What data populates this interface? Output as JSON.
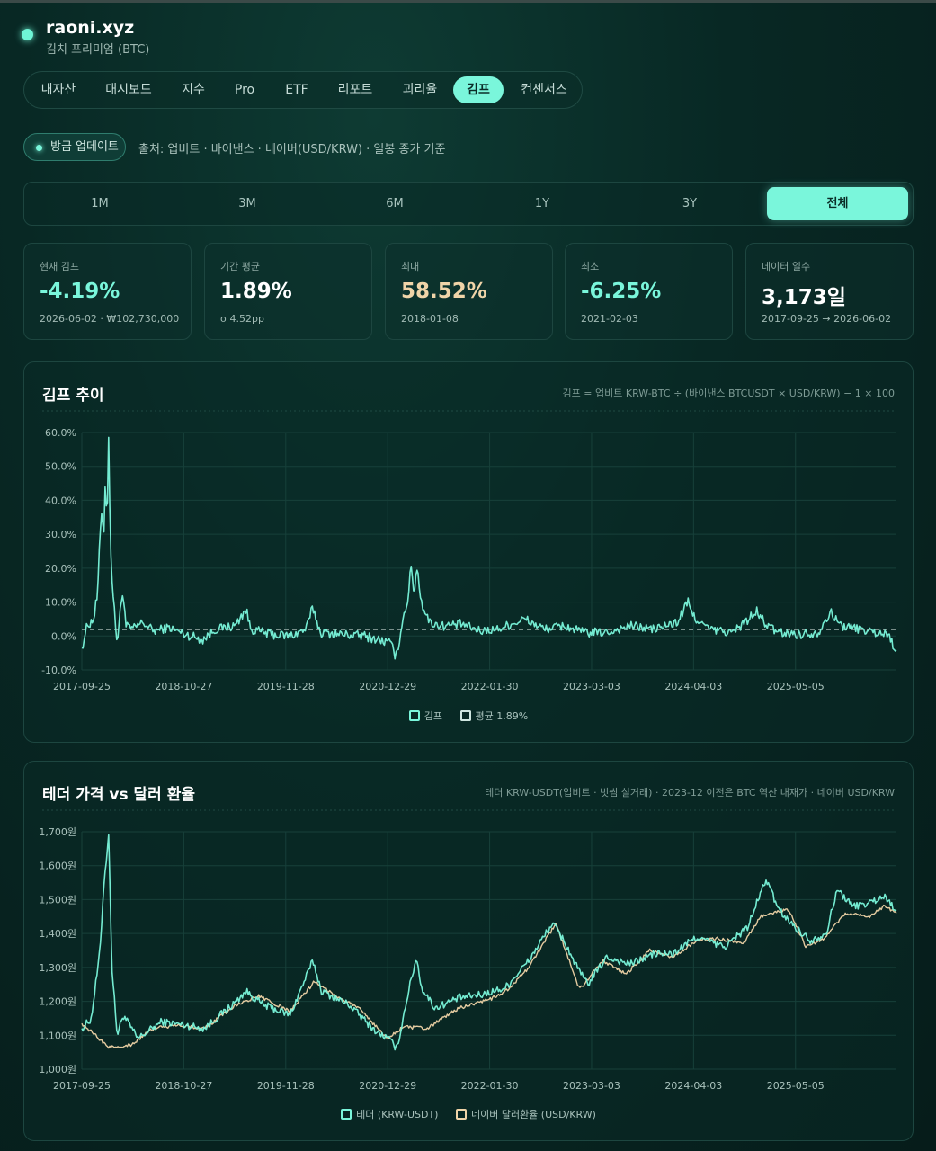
{
  "brand": {
    "name": "raoni.xyz",
    "subtitle": "김치 프리미엄 (BTC)"
  },
  "nav": {
    "items": [
      "내자산",
      "대시보드",
      "지수",
      "Pro",
      "ETF",
      "리포트",
      "괴리율",
      "김프",
      "컨센서스"
    ],
    "active": "김프"
  },
  "status": {
    "badge": "방금 업데이트",
    "source": "출처: 업비트 · 바이낸스 · 네이버(USD/KRW) · 일봉 종가 기준"
  },
  "range": {
    "items": [
      "1M",
      "3M",
      "6M",
      "1Y",
      "3Y",
      "전체"
    ],
    "active": "전체"
  },
  "stats": [
    {
      "label": "현재 김프",
      "value": "-4.19%",
      "sub": "2026-06-02 · ₩102,730,000",
      "color": "#7af6db"
    },
    {
      "label": "기간 평균",
      "value": "1.89%",
      "sub": "σ 4.52pp",
      "color": "#ffffff"
    },
    {
      "label": "최대",
      "value": "58.52%",
      "sub": "2018-01-08",
      "color": "#f0d4a8"
    },
    {
      "label": "최소",
      "value": "-6.25%",
      "sub": "2021-02-03",
      "color": "#7af6db"
    },
    {
      "label": "데이터 일수",
      "value": "3,173일",
      "sub": "2017-09-25 → 2026-06-02",
      "color": "#ffffff"
    }
  ],
  "colors": {
    "accent": "#7af6db",
    "secondary": "#f0d4a8",
    "mean_line": "#9fb1ad"
  },
  "chart1": {
    "title": "김프 추이",
    "note": "김프 = 업비트 KRW-BTC ÷ (바이낸스 BTCUSDT × USD/KRW) − 1 × 100"
  },
  "chart2": {
    "title": "테더 가격 vs 달러 환율",
    "note": "테더 KRW-USDT(업비트 · 빗썸 실거래) · 2023-12 이전은 BTC 역산 내재가 · 네이버 USD/KRW"
  },
  "chart_data": [
    {
      "type": "line",
      "title": "김프 추이",
      "x_ticks": [
        "2017-09-25",
        "2018-10-27",
        "2019-11-28",
        "2020-12-29",
        "2022-01-30",
        "2023-03-03",
        "2024-04-03",
        "2025-05-05"
      ],
      "y_ticks": [
        "60.0%",
        "50.0%",
        "40.0%",
        "30.0%",
        "20.0%",
        "10.0%",
        "0.0%",
        "-10.0%"
      ],
      "ylim": [
        -10,
        60
      ],
      "xlim": [
        "2017-09-25",
        "2026-06-02"
      ],
      "grid": true,
      "legend": "bottom",
      "legend_entries": [
        "김프",
        "평균 1.89%"
      ],
      "mean": 1.89,
      "series": [
        {
          "name": "김프",
          "color": "#7af6db",
          "points": [
            [
              "2017-09-25",
              -3.5
            ],
            [
              "2017-10-15",
              3.0
            ],
            [
              "2017-11-10",
              5.0
            ],
            [
              "2017-11-25",
              12.0
            ],
            [
              "2017-12-05",
              28.0
            ],
            [
              "2017-12-12",
              40.0
            ],
            [
              "2017-12-18",
              28.0
            ],
            [
              "2017-12-25",
              45.0
            ],
            [
              "2018-01-02",
              37.0
            ],
            [
              "2018-01-08",
              58.5
            ],
            [
              "2018-01-14",
              30.0
            ],
            [
              "2018-01-22",
              15.0
            ],
            [
              "2018-02-01",
              5.0
            ],
            [
              "2018-02-10",
              -2.0
            ],
            [
              "2018-02-20",
              6.0
            ],
            [
              "2018-03-05",
              14.0
            ],
            [
              "2018-03-15",
              3.0
            ],
            [
              "2018-04-10",
              2.0
            ],
            [
              "2018-05-20",
              4.0
            ],
            [
              "2018-07-01",
              1.5
            ],
            [
              "2018-09-01",
              2.5
            ],
            [
              "2018-11-01",
              0.5
            ],
            [
              "2019-01-10",
              -1.0
            ],
            [
              "2019-03-01",
              2.0
            ],
            [
              "2019-05-15",
              3.0
            ],
            [
              "2019-06-25",
              8.0
            ],
            [
              "2019-07-15",
              2.0
            ],
            [
              "2019-10-01",
              0.5
            ],
            [
              "2019-12-15",
              0.0
            ],
            [
              "2020-02-15",
              2.0
            ],
            [
              "2020-03-13",
              8.5
            ],
            [
              "2020-04-10",
              1.0
            ],
            [
              "2020-07-01",
              0.5
            ],
            [
              "2020-10-01",
              0.0
            ],
            [
              "2021-01-05",
              -2.0
            ],
            [
              "2021-02-03",
              -6.25
            ],
            [
              "2021-02-20",
              3.0
            ],
            [
              "2021-03-15",
              10.0
            ],
            [
              "2021-04-01",
              20.5
            ],
            [
              "2021-04-12",
              12.0
            ],
            [
              "2021-04-20",
              21.5
            ],
            [
              "2021-05-10",
              10.0
            ],
            [
              "2021-06-10",
              4.0
            ],
            [
              "2021-08-01",
              3.0
            ],
            [
              "2021-10-15",
              3.5
            ],
            [
              "2021-12-20",
              1.5
            ],
            [
              "2022-03-01",
              2.0
            ],
            [
              "2022-06-15",
              5.0
            ],
            [
              "2022-09-01",
              2.0
            ],
            [
              "2022-11-15",
              3.0
            ],
            [
              "2023-02-01",
              1.0
            ],
            [
              "2023-05-01",
              1.0
            ],
            [
              "2023-08-01",
              3.0
            ],
            [
              "2023-11-01",
              2.0
            ],
            [
              "2024-02-01",
              4.0
            ],
            [
              "2024-03-10",
              10.0
            ],
            [
              "2024-04-01",
              6.0
            ],
            [
              "2024-06-01",
              2.0
            ],
            [
              "2024-09-01",
              1.0
            ],
            [
              "2024-12-05",
              7.0
            ],
            [
              "2025-01-15",
              3.0
            ],
            [
              "2025-03-01",
              1.0
            ],
            [
              "2025-05-20",
              0.5
            ],
            [
              "2025-08-01",
              1.0
            ],
            [
              "2025-09-15",
              7.0
            ],
            [
              "2025-11-01",
              3.0
            ],
            [
              "2026-01-15",
              2.0
            ],
            [
              "2026-03-15",
              1.0
            ],
            [
              "2026-05-01",
              0.5
            ],
            [
              "2026-06-02",
              -4.19
            ]
          ]
        }
      ]
    },
    {
      "type": "line",
      "title": "테더 가격 vs 달러 환율",
      "x_ticks": [
        "2017-09-25",
        "2018-10-27",
        "2019-11-28",
        "2020-12-29",
        "2022-01-30",
        "2023-03-03",
        "2024-04-03",
        "2025-05-05"
      ],
      "y_ticks": [
        "1,700원",
        "1,600원",
        "1,500원",
        "1,400원",
        "1,300원",
        "1,200원",
        "1,100원",
        "1,000원"
      ],
      "ylim": [
        1000,
        1700
      ],
      "xlim": [
        "2017-09-25",
        "2026-06-02"
      ],
      "grid": true,
      "legend": "bottom",
      "legend_entries": [
        "테더 (KRW-USDT)",
        "네이버 달러환율 (USD/KRW)"
      ],
      "series": [
        {
          "name": "테더 (KRW-USDT)",
          "color": "#7af6db",
          "points": [
            [
              "2017-09-25",
              1120
            ],
            [
              "2017-11-01",
              1150
            ],
            [
              "2017-12-05",
              1350
            ],
            [
              "2017-12-20",
              1550
            ],
            [
              "2018-01-08",
              1690
            ],
            [
              "2018-01-20",
              1300
            ],
            [
              "2018-02-10",
              1100
            ],
            [
              "2018-03-05",
              1160
            ],
            [
              "2018-05-01",
              1090
            ],
            [
              "2018-08-01",
              1140
            ],
            [
              "2018-11-01",
              1130
            ],
            [
              "2019-01-15",
              1120
            ],
            [
              "2019-05-20",
              1200
            ],
            [
              "2019-06-25",
              1230
            ],
            [
              "2019-09-01",
              1190
            ],
            [
              "2019-12-15",
              1160
            ],
            [
              "2020-03-13",
              1320
            ],
            [
              "2020-04-15",
              1230
            ],
            [
              "2020-08-01",
              1190
            ],
            [
              "2020-11-15",
              1110
            ],
            [
              "2021-01-01",
              1090
            ],
            [
              "2021-02-03",
              1060
            ],
            [
              "2021-03-20",
              1230
            ],
            [
              "2021-04-20",
              1330
            ],
            [
              "2021-05-10",
              1240
            ],
            [
              "2021-07-01",
              1180
            ],
            [
              "2021-10-01",
              1210
            ],
            [
              "2022-01-01",
              1220
            ],
            [
              "2022-04-01",
              1240
            ],
            [
              "2022-07-01",
              1320
            ],
            [
              "2022-10-01",
              1430
            ],
            [
              "2022-11-15",
              1380
            ],
            [
              "2023-01-05",
              1300
            ],
            [
              "2023-02-15",
              1250
            ],
            [
              "2023-05-01",
              1330
            ],
            [
              "2023-08-01",
              1310
            ],
            [
              "2023-11-01",
              1340
            ],
            [
              "2024-01-15",
              1340
            ],
            [
              "2024-04-15",
              1390
            ],
            [
              "2024-08-01",
              1360
            ],
            [
              "2024-11-01",
              1420
            ],
            [
              "2024-12-10",
              1500
            ],
            [
              "2025-01-10",
              1560
            ],
            [
              "2025-03-01",
              1470
            ],
            [
              "2025-05-01",
              1420
            ],
            [
              "2025-07-01",
              1380
            ],
            [
              "2025-09-01",
              1400
            ],
            [
              "2025-10-15",
              1530
            ],
            [
              "2025-12-15",
              1480
            ],
            [
              "2026-02-15",
              1490
            ],
            [
              "2026-04-15",
              1510
            ],
            [
              "2026-06-02",
              1470
            ]
          ]
        },
        {
          "name": "네이버 달러환율 (USD/KRW)",
          "color": "#f0d4a8",
          "points": [
            [
              "2017-09-25",
              1135
            ],
            [
              "2017-12-01",
              1090
            ],
            [
              "2018-01-08",
              1065
            ],
            [
              "2018-04-01",
              1070
            ],
            [
              "2018-07-01",
              1120
            ],
            [
              "2018-10-01",
              1130
            ],
            [
              "2019-01-15",
              1120
            ],
            [
              "2019-05-20",
              1190
            ],
            [
              "2019-08-15",
              1215
            ],
            [
              "2019-12-15",
              1170
            ],
            [
              "2020-03-20",
              1260
            ],
            [
              "2020-06-01",
              1220
            ],
            [
              "2020-09-01",
              1185
            ],
            [
              "2020-12-29",
              1090
            ],
            [
              "2021-03-01",
              1125
            ],
            [
              "2021-06-01",
              1120
            ],
            [
              "2021-10-01",
              1180
            ],
            [
              "2022-01-30",
              1205
            ],
            [
              "2022-04-15",
              1235
            ],
            [
              "2022-07-01",
              1300
            ],
            [
              "2022-10-15",
              1430
            ],
            [
              "2023-01-15",
              1235
            ],
            [
              "2023-04-15",
              1320
            ],
            [
              "2023-07-15",
              1280
            ],
            [
              "2023-10-15",
              1350
            ],
            [
              "2024-01-15",
              1330
            ],
            [
              "2024-04-15",
              1380
            ],
            [
              "2024-07-15",
              1385
            ],
            [
              "2024-10-15",
              1370
            ],
            [
              "2024-12-20",
              1450
            ],
            [
              "2025-02-01",
              1460
            ],
            [
              "2025-04-10",
              1470
            ],
            [
              "2025-06-15",
              1360
            ],
            [
              "2025-09-01",
              1390
            ],
            [
              "2025-11-15",
              1460
            ],
            [
              "2026-02-15",
              1450
            ],
            [
              "2026-04-15",
              1480
            ],
            [
              "2026-06-02",
              1460
            ]
          ]
        }
      ]
    }
  ]
}
